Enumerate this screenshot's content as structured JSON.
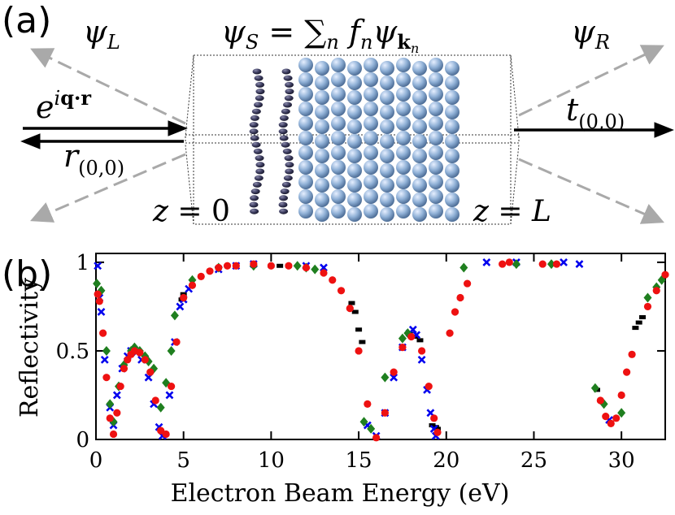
{
  "panel_a": {
    "label": "(a)",
    "psi_left": "ψ_L",
    "psi_right": "ψ_R",
    "psi_s": "ψ_S = ∑_n f_n ψ_kn",
    "incident": "e^{iq·r}",
    "reflected": "r_(0,0)",
    "transmitted": "t_(0,0)",
    "z_left": "z = 0",
    "z_right": "z = L",
    "colors": {
      "substrate_atoms": "#8fb0d6",
      "adsorbate_atoms": "#3a3a5c",
      "scatter_arrows": "#a9a9a9",
      "beam_arrows": "#000000"
    }
  },
  "panel_b": {
    "label": "(b)",
    "chart_data": {
      "type": "scatter",
      "xlabel": "Electron Beam Energy (eV)",
      "ylabel": "Reflectivity",
      "xlim": [
        0,
        32.5
      ],
      "ylim": [
        0,
        1.05
      ],
      "xticks": [
        0,
        5,
        10,
        15,
        20,
        25,
        30
      ],
      "xtick_labels": [
        "0",
        "5",
        "10",
        "15",
        "20",
        "25",
        "30"
      ],
      "yticks": [
        0,
        0.5,
        1
      ],
      "ytick_labels": [
        "0",
        "0.5",
        "1"
      ],
      "grid": false,
      "series": [
        {
          "name": "black",
          "color": "#000000",
          "marker": "dash",
          "x": [
            4.9,
            5.0,
            7.0,
            10.0,
            10.5,
            11.0,
            14.6,
            14.8,
            15.0,
            15.2,
            17.9,
            18.2,
            18.5,
            19.2,
            19.4,
            19.5,
            28.6,
            30.8,
            31.0,
            31.2
          ],
          "y": [
            0.79,
            0.82,
            0.97,
            0.98,
            0.98,
            0.98,
            0.77,
            0.72,
            0.62,
            0.55,
            0.6,
            0.58,
            0.56,
            0.08,
            0.07,
            0.06,
            0.28,
            0.63,
            0.66,
            0.69
          ]
        },
        {
          "name": "blue",
          "color": "#0000ee",
          "marker": "x",
          "x": [
            0.1,
            0.2,
            0.3,
            0.5,
            0.8,
            1.0,
            1.2,
            1.5,
            1.8,
            2.0,
            2.3,
            2.6,
            3.0,
            3.3,
            3.6,
            3.8,
            4.2,
            4.5,
            4.8,
            5.0,
            5.3,
            7.0,
            8.0,
            9.0,
            12.0,
            13.0,
            15.5,
            16.0,
            16.5,
            17.0,
            17.5,
            17.9,
            18.1,
            18.3,
            18.6,
            18.9,
            19.1,
            19.3,
            19.4,
            22.3,
            24.0,
            26.7,
            27.6,
            29.3
          ],
          "y": [
            0.98,
            0.8,
            0.72,
            0.45,
            0.18,
            0.08,
            0.25,
            0.4,
            0.47,
            0.5,
            0.49,
            0.45,
            0.35,
            0.2,
            0.07,
            0.02,
            0.25,
            0.55,
            0.75,
            0.79,
            0.85,
            0.96,
            0.98,
            0.99,
            0.98,
            0.97,
            0.08,
            0.02,
            0.15,
            0.35,
            0.52,
            0.6,
            0.62,
            0.59,
            0.45,
            0.28,
            0.15,
            0.06,
            0.02,
            1.0,
            1.0,
            1.0,
            0.99,
            0.11
          ]
        },
        {
          "name": "green",
          "color": "#1f7f1f",
          "marker": "diamond",
          "x": [
            0.05,
            0.3,
            0.6,
            0.8,
            1.0,
            1.3,
            1.6,
            2.0,
            2.2,
            2.5,
            2.8,
            3.0,
            3.3,
            3.7,
            4.0,
            4.3,
            4.5,
            5.5,
            7.0,
            9.0,
            11.5,
            12.0,
            12.5,
            15.3,
            15.7,
            16.5,
            17.5,
            17.8,
            21.0,
            24.0,
            26.0,
            28.5,
            29.0,
            30.0,
            31.5,
            32.0,
            32.3
          ],
          "y": [
            0.88,
            0.84,
            0.5,
            0.2,
            0.1,
            0.3,
            0.42,
            0.5,
            0.52,
            0.5,
            0.47,
            0.44,
            0.4,
            0.18,
            0.32,
            0.5,
            0.7,
            0.9,
            0.97,
            0.98,
            0.98,
            0.97,
            0.96,
            0.1,
            0.06,
            0.35,
            0.57,
            0.6,
            0.97,
            0.99,
            0.99,
            0.29,
            0.2,
            0.15,
            0.8,
            0.86,
            0.9
          ]
        },
        {
          "name": "red",
          "color": "#ee1111",
          "marker": "circle",
          "x": [
            0.1,
            0.2,
            0.4,
            0.6,
            0.8,
            1.0,
            1.2,
            1.4,
            1.6,
            1.8,
            2.0,
            2.2,
            2.5,
            2.8,
            3.1,
            3.4,
            3.7,
            4.0,
            4.3,
            4.6,
            5.0,
            5.5,
            6.0,
            6.5,
            7.0,
            7.5,
            8.0,
            9.0,
            10.0,
            11.0,
            12.0,
            13.0,
            13.5,
            14.0,
            14.5,
            15.0,
            15.5,
            16.0,
            16.5,
            17.0,
            17.5,
            18.0,
            18.6,
            19.0,
            19.3,
            19.5,
            20.2,
            20.5,
            20.8,
            21.2,
            23.2,
            23.6,
            25.5,
            26.3,
            28.8,
            29.1,
            29.4,
            29.7,
            30.0,
            30.3,
            30.6,
            31.5,
            32.0,
            32.5
          ],
          "y": [
            0.82,
            0.78,
            0.6,
            0.35,
            0.12,
            0.03,
            0.15,
            0.3,
            0.4,
            0.45,
            0.48,
            0.5,
            0.49,
            0.45,
            0.38,
            0.22,
            0.05,
            0.03,
            0.3,
            0.55,
            0.8,
            0.87,
            0.92,
            0.95,
            0.97,
            0.98,
            0.98,
            0.99,
            0.98,
            0.98,
            0.97,
            0.94,
            0.9,
            0.84,
            0.74,
            0.5,
            0.2,
            0.01,
            0.15,
            0.38,
            0.52,
            0.58,
            0.5,
            0.3,
            0.12,
            0.04,
            0.6,
            0.72,
            0.8,
            0.88,
            0.99,
            1.0,
            0.99,
            0.99,
            0.22,
            0.13,
            0.09,
            0.12,
            0.25,
            0.38,
            0.48,
            0.75,
            0.84,
            0.93
          ]
        }
      ]
    }
  }
}
